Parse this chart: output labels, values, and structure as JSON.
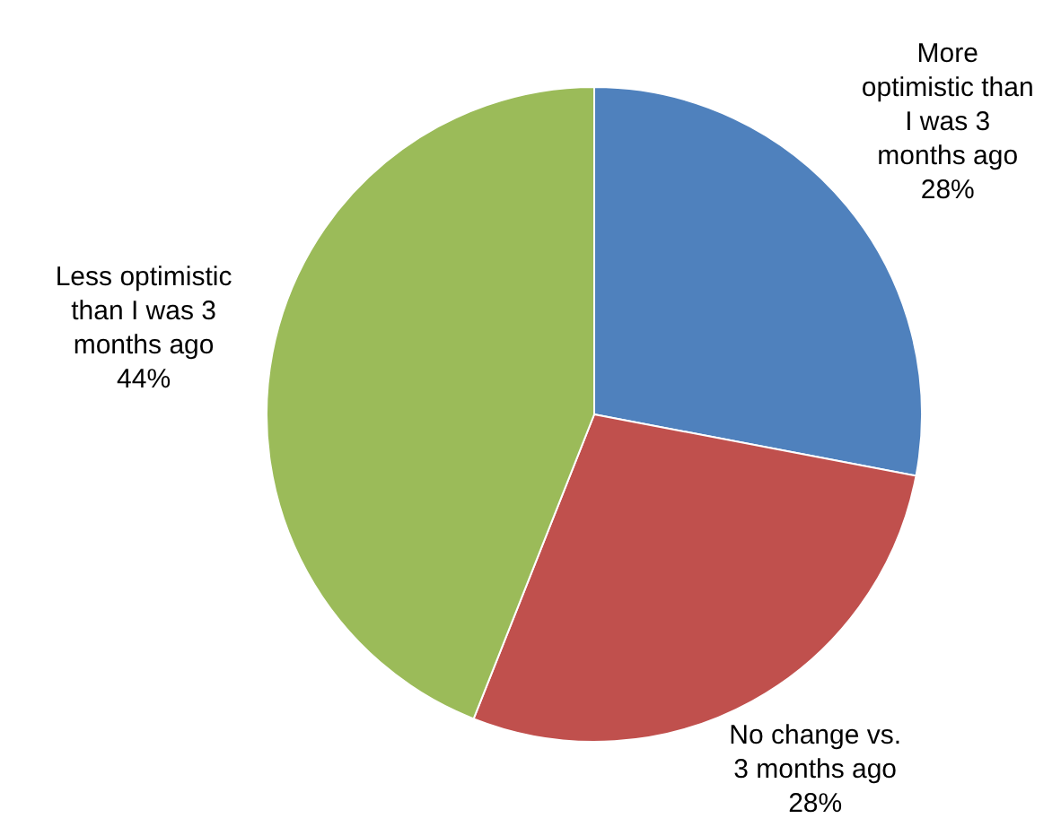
{
  "chart_data": {
    "type": "pie",
    "categories": [
      "More optimistic than I was 3 months ago",
      "No change vs. 3 months ago",
      "Less optimistic than I was 3 months ago"
    ],
    "values": [
      28,
      28,
      44
    ],
    "colors": [
      "#4f81bd",
      "#c0504d",
      "#9bbb59"
    ],
    "value_labels": [
      "28%",
      "28%",
      "44%"
    ],
    "legend": false
  }
}
